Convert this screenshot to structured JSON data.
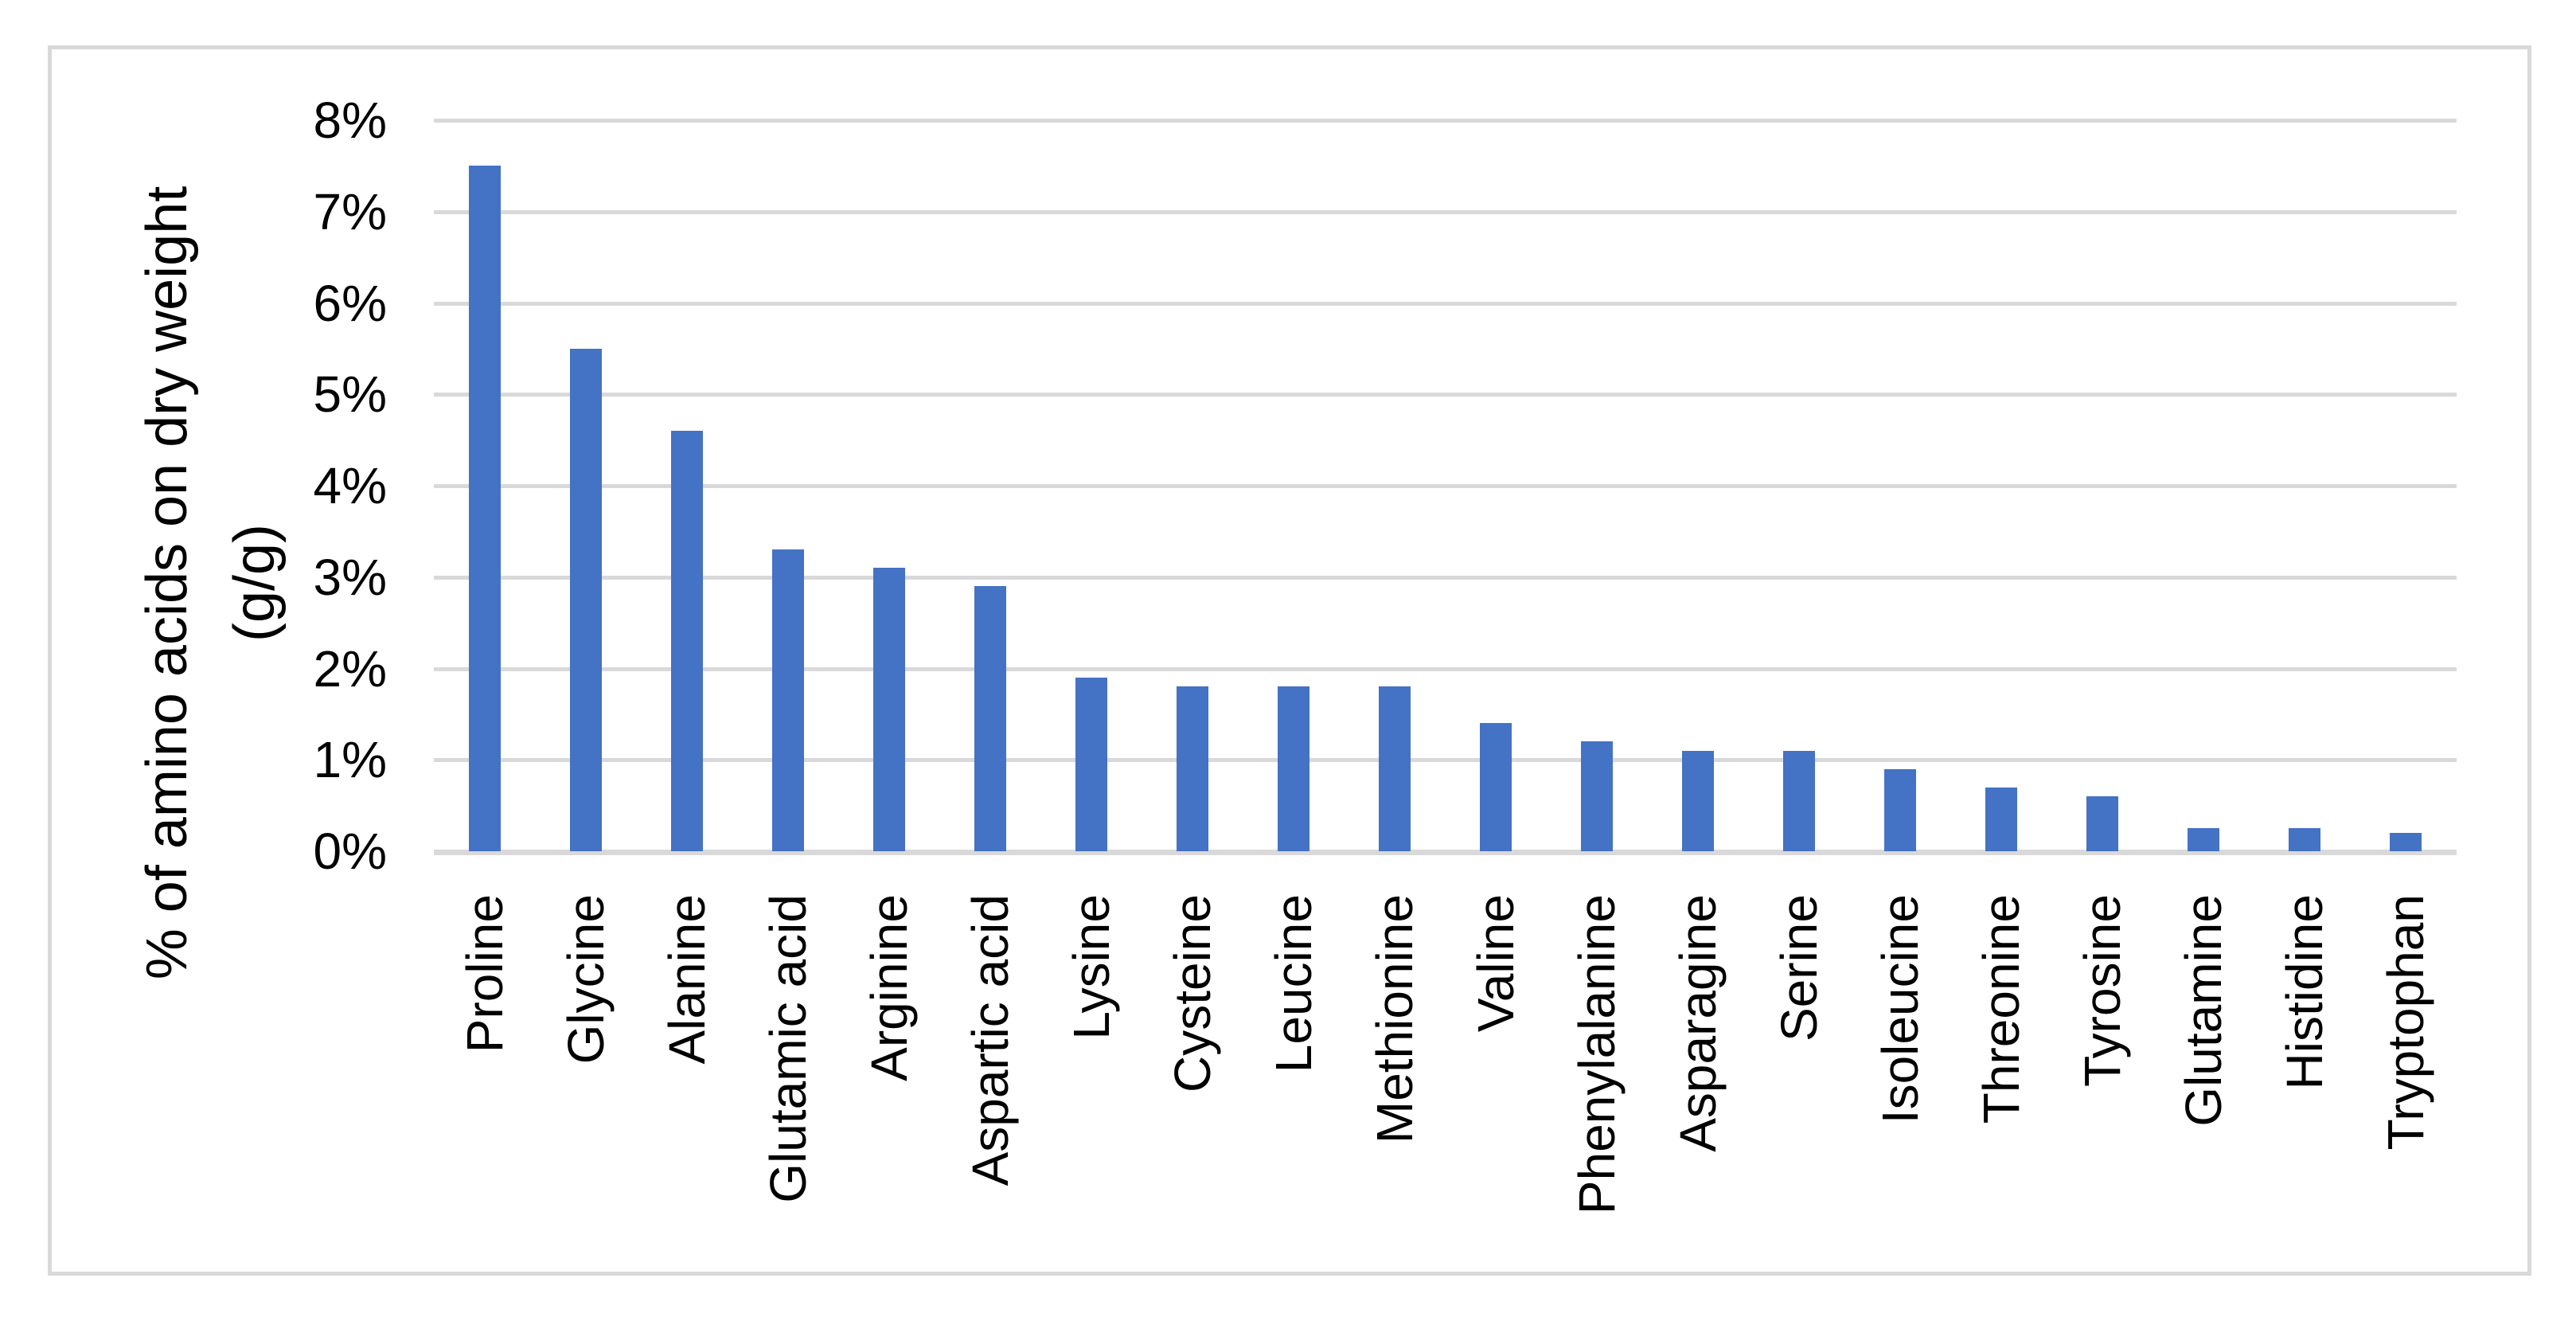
{
  "chart_data": {
    "type": "bar",
    "title": "",
    "categories": [
      "Proline",
      "Glycine",
      "Alanine",
      "Glutamic acid",
      "Arginine",
      "Aspartic acid",
      "Lysine",
      "Cysteine",
      "Leucine",
      "Methionine",
      "Valine",
      "Phenylalanine",
      "Asparagine",
      "Serine",
      "Isoleucine",
      "Threonine",
      "Tyrosine",
      "Glutamine",
      "Histidine",
      "Tryptophan"
    ],
    "values": [
      7.5,
      5.5,
      4.6,
      3.3,
      3.1,
      2.9,
      1.9,
      1.8,
      1.8,
      1.8,
      1.4,
      1.2,
      1.1,
      1.1,
      0.9,
      0.7,
      0.6,
      0.25,
      0.25,
      0.2
    ],
    "xlabel": "",
    "ylabel": "% of amino acids on dry weight (g/g)",
    "ylabel_lines": [
      "% of amino acids on dry weight",
      "(g/g)"
    ],
    "ylim": [
      0,
      8
    ],
    "y_tick_step": 1,
    "y_tick_labels": [
      "0%",
      "1%",
      "2%",
      "3%",
      "4%",
      "5%",
      "6%",
      "7%",
      "8%"
    ],
    "grid": true,
    "legend": false,
    "colors": {
      "bar": "#4472C4",
      "gridline": "#D9D9D9",
      "axis_line": "#D9D9D9",
      "frame_border": "#D9D9D9",
      "text": "#000000",
      "background": "#FFFFFF"
    }
  }
}
